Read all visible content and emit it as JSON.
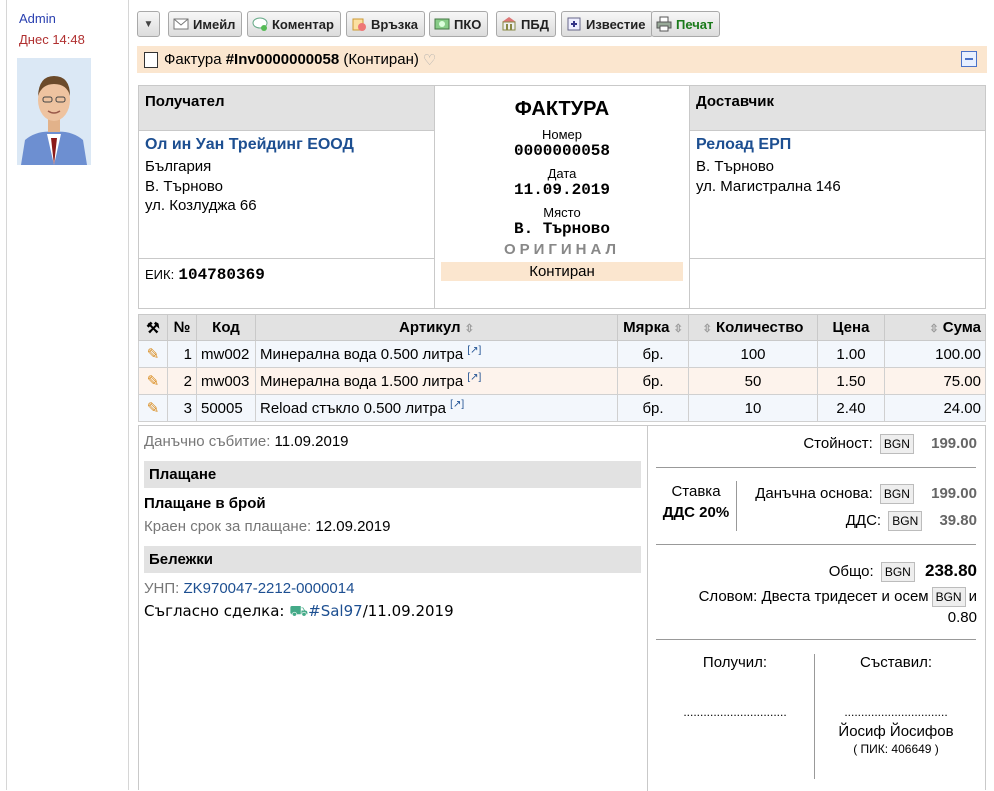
{
  "user": {
    "name": "Admin",
    "time": "Днес 14:48"
  },
  "toolbar": {
    "email": "Имейл",
    "comment": "Коментар",
    "link": "Връзка",
    "pko": "ПКО",
    "pbd": "ПБД",
    "notice": "Известие",
    "print": "Печат"
  },
  "title": {
    "prefix": "Фактура",
    "number": "#Inv0000000058",
    "status": "(Контиран)"
  },
  "recipient": {
    "header": "Получател",
    "company": "Ол ин Уан Трейдинг ЕООД",
    "country": "България",
    "city": "В. Търново",
    "street": "ул. Козлуджа 66",
    "eik_label": "ЕИК:",
    "eik": "104780369"
  },
  "invoice": {
    "title": "ФАКТУРА",
    "number_label": "Номер",
    "number": "0000000058",
    "date_label": "Дата",
    "date": "11.09.2019",
    "place_label": "Място",
    "place": "В. Търново",
    "original": "ОРИГИНАЛ",
    "state": "Контиран"
  },
  "supplier": {
    "header": "Доставчик",
    "company": "Релоад ЕРП",
    "city": "В. Търново",
    "street": "ул. Магистрална 146"
  },
  "items": {
    "headers": {
      "no": "№",
      "code": "Код",
      "article": "Артикул",
      "unit": "Мярка",
      "qty": "Количество",
      "price": "Цена",
      "sum": "Сума"
    },
    "rows": [
      {
        "no": "1",
        "code": "mw002",
        "article": "Минерална вода 0.500 литра",
        "unit": "бр.",
        "qty": "100",
        "price": "1.00",
        "sum": "100.00"
      },
      {
        "no": "2",
        "code": "mw003",
        "article": "Минерална вода 1.500 литра",
        "unit": "бр.",
        "qty": "50",
        "price": "1.50",
        "sum": "75.00"
      },
      {
        "no": "3",
        "code": "50005",
        "article": "Reload стъкло 0.500 литра",
        "unit": "бр.",
        "qty": "10",
        "price": "2.40",
        "sum": "24.00"
      }
    ]
  },
  "details": {
    "tax_event_label": "Данъчно събитие:",
    "tax_event": "11.09.2019",
    "payment_header": "Плащане",
    "payment_method": "Плащане в брой",
    "due_label": "Краен срок за плащане:",
    "due": "12.09.2019",
    "notes_header": "Бележки",
    "unp_label": "УНП:",
    "unp": "ZK970047-2212-0000014",
    "deal_label": "Съгласно сделка:",
    "deal": "#Sal97",
    "deal_date": "/11.09.2019"
  },
  "totals": {
    "currency": "BGN",
    "value_label": "Стойност:",
    "value": "199.00",
    "rate_label": "Ставка",
    "rate": "ДДС 20%",
    "base_label": "Данъчна основа:",
    "base": "199.00",
    "vat_label": "ДДС:",
    "vat": "39.80",
    "total_label": "Общо:",
    "total": "238.80",
    "words_label": "Словом:",
    "words": "Двеста тридесет и осем",
    "words_and": "и",
    "words_cents": "0.80"
  },
  "signatures": {
    "received_label": "Получил:",
    "created_label": "Съставил:",
    "dots": "...............................",
    "creator_name": "Йосиф Йосифов",
    "creator_pik": "( ПИК: 406649 )"
  }
}
